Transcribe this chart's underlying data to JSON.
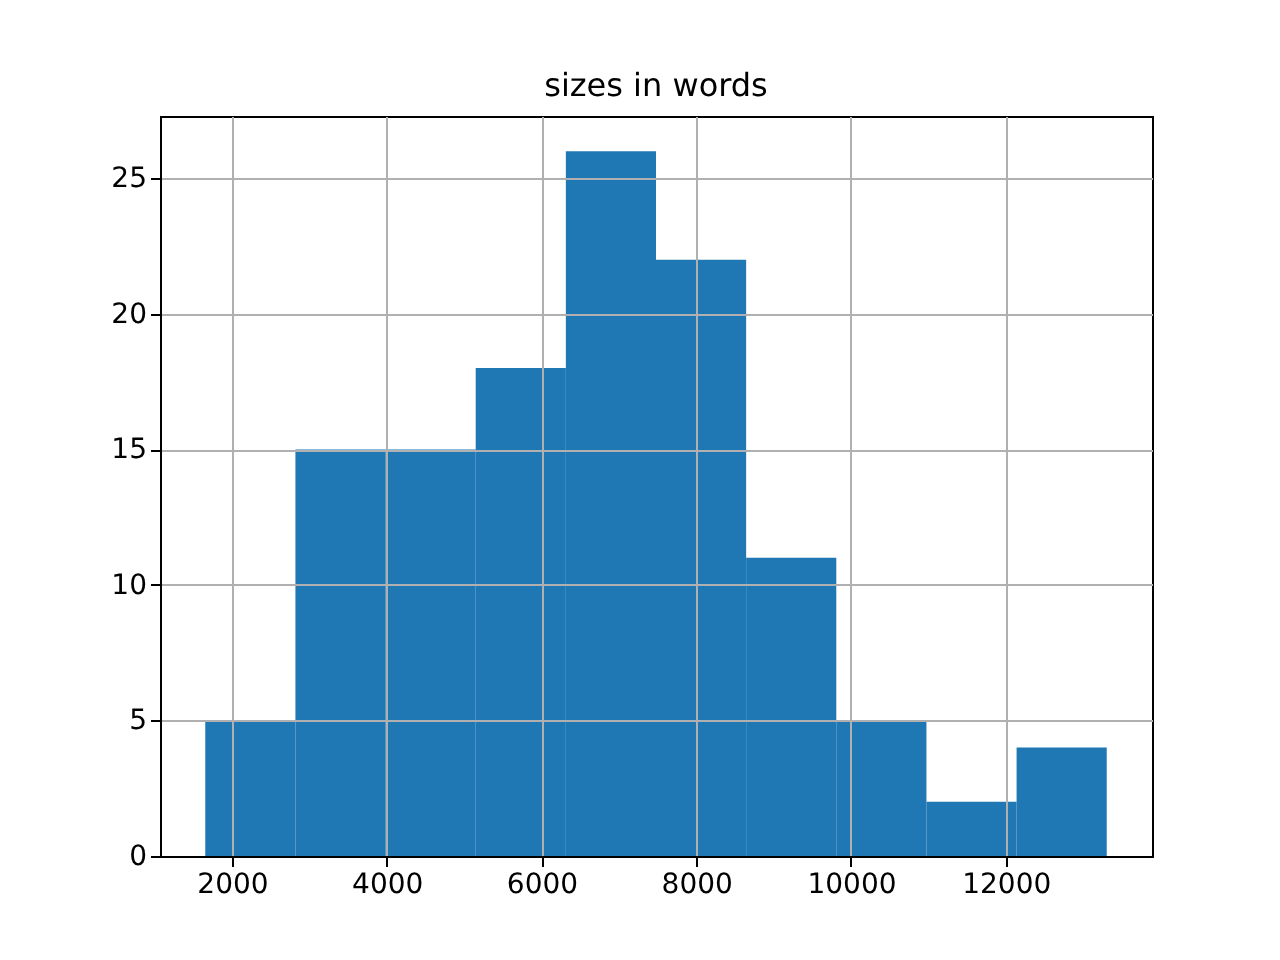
{
  "chart_data": {
    "type": "histogram",
    "title": "sizes in words",
    "bins": [
      1655,
      2820,
      3985,
      5150,
      6315,
      7480,
      8645,
      9810,
      10975,
      12140,
      13305
    ],
    "values": [
      5,
      15,
      15,
      18,
      26,
      22,
      11,
      5,
      2,
      4
    ],
    "color": "#1f77b4",
    "xlim": [
      1070,
      13890
    ],
    "ylim": [
      0,
      27.3
    ],
    "xticks": [
      2000,
      4000,
      6000,
      8000,
      10000,
      12000
    ],
    "yticks": [
      0,
      5,
      10,
      15,
      20,
      25
    ],
    "grid": true
  }
}
